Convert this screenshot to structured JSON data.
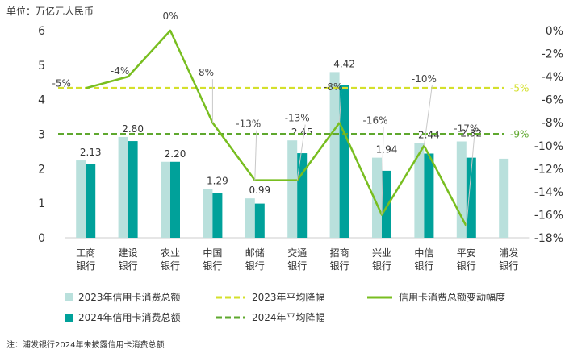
{
  "chart_data": {
    "type": "bar",
    "unit_label": "单位：万亿元人民币",
    "note": "注：浦发银行2024年未披露信用卡消费总额",
    "categories": [
      "工商银行",
      "建设银行",
      "农业银行",
      "中国银行",
      "邮储银行",
      "交通银行",
      "招商银行",
      "兴业银行",
      "中信银行",
      "平安银行",
      "浦发银行"
    ],
    "series": [
      {
        "name": "2023年信用卡消费总额",
        "color": "#b9e0dc",
        "values": [
          2.24,
          2.92,
          2.2,
          1.41,
          1.14,
          2.82,
          4.8,
          2.32,
          2.74,
          2.79,
          2.29
        ]
      },
      {
        "name": "2024年信用卡消费总额",
        "color": "#00a19a",
        "values": [
          2.13,
          2.8,
          2.2,
          1.29,
          0.99,
          2.45,
          4.42,
          1.94,
          2.44,
          2.32,
          null
        ],
        "labels": [
          "2.13",
          "2.80",
          "2.20",
          "1.29",
          "0.99",
          "2.45",
          "4.42",
          "1.94",
          "2.44",
          "2.32",
          ""
        ]
      },
      {
        "name": "信用卡消费总额变动幅度",
        "color": "#78be20",
        "axis": "right",
        "values": [
          -5,
          -4,
          0,
          -8,
          -13,
          -13,
          -8,
          -16,
          -10,
          -17,
          null
        ],
        "labels": [
          "-5%",
          "-4%",
          "0%",
          "-8%",
          "-13%",
          "-13%",
          "-8%",
          "-16%",
          "-10%",
          "-17%",
          ""
        ]
      }
    ],
    "reference_lines": [
      {
        "name": "2023年平均降幅",
        "value": -5,
        "label": "-5%",
        "color": "#d4e02b"
      },
      {
        "name": "2024年平均降幅",
        "value": -9,
        "label": "-9%",
        "color": "#5fa82e"
      }
    ],
    "y_left": {
      "min": 0,
      "max": 6,
      "ticks": [
        "0",
        "1",
        "2",
        "3",
        "4",
        "5",
        "6"
      ]
    },
    "y_right": {
      "min": -18,
      "max": 0,
      "ticks": [
        "0%",
        "-2%",
        "-4%",
        "-6%",
        "-8%",
        "-10%",
        "-12%",
        "-14%",
        "-16%",
        "-18%"
      ]
    },
    "legend_placement": "bottom"
  }
}
